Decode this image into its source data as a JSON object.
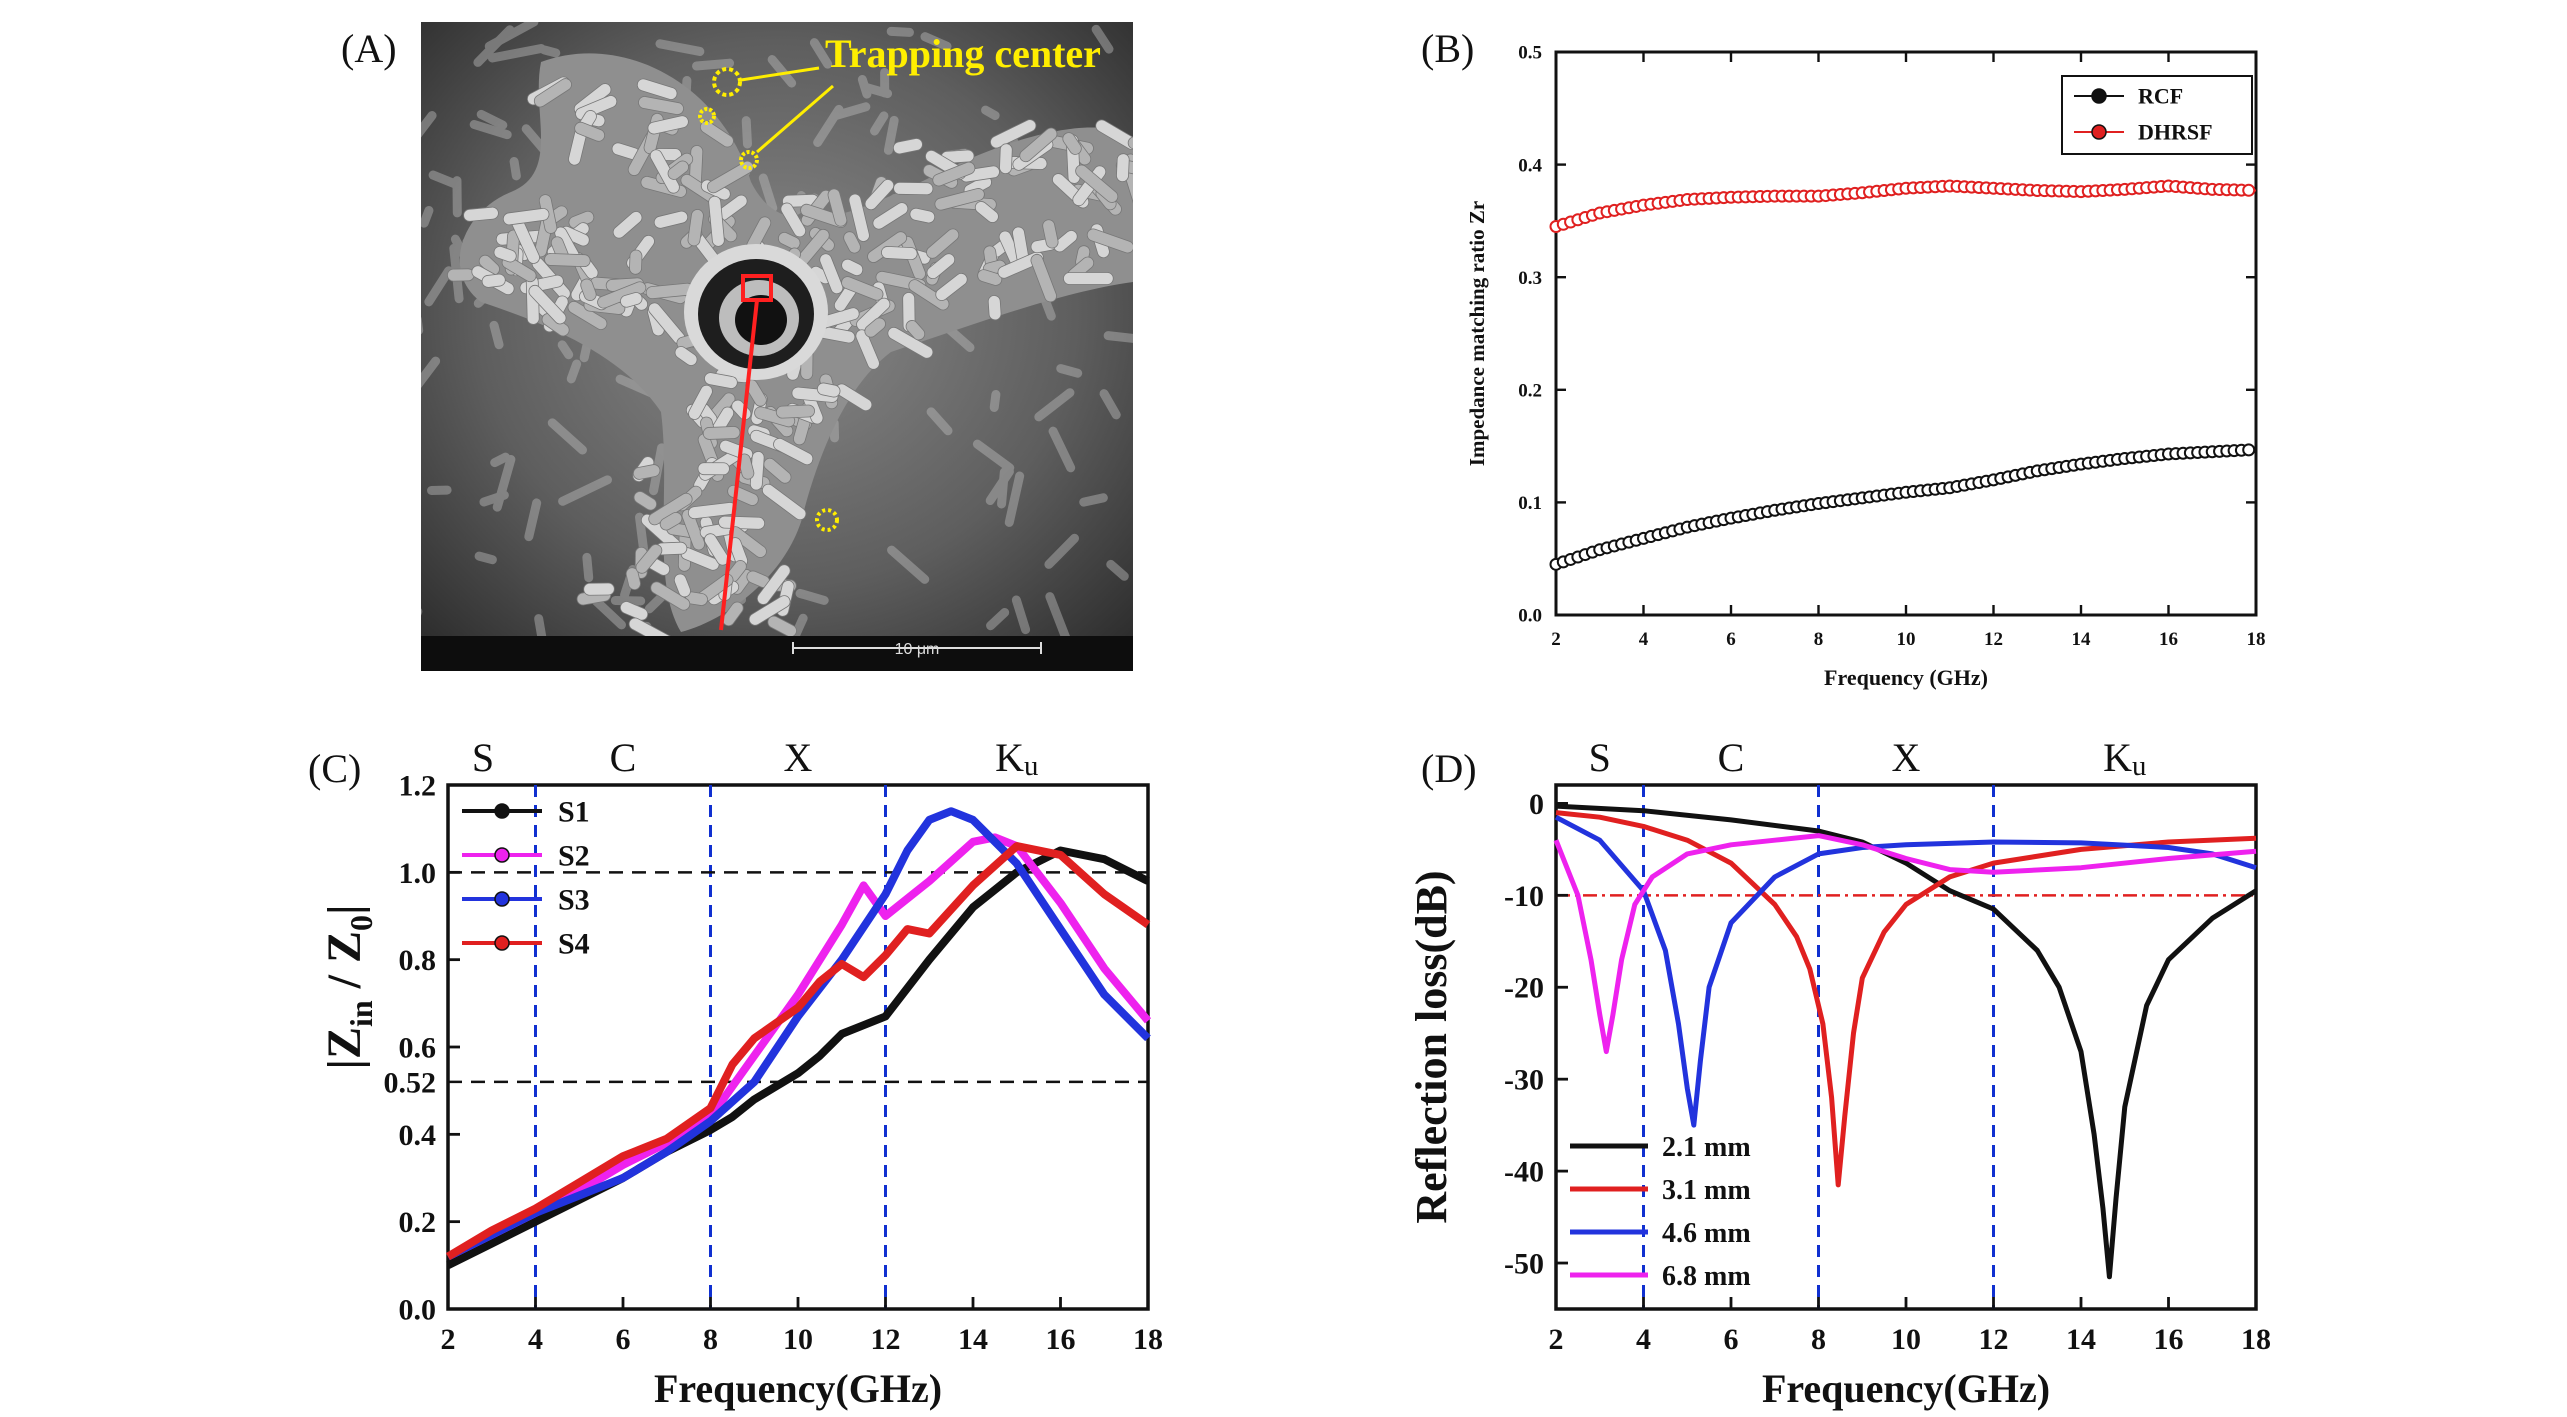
{
  "panels": {
    "a": {
      "label": "(A)",
      "annotation": "Trapping center",
      "scale_bar_label": "10 μm"
    },
    "b": {
      "label": "(B)"
    },
    "c": {
      "label": "(C)"
    },
    "d": {
      "label": "(D)"
    }
  },
  "chart_data": [
    {
      "id": "B",
      "type": "line",
      "title": "",
      "xlabel": "Frequency (GHz)",
      "ylabel": "Impedance matching ratio Zr",
      "xlim": [
        2,
        18
      ],
      "ylim": [
        0.0,
        0.5
      ],
      "xticks": [
        2,
        4,
        6,
        8,
        10,
        12,
        14,
        16,
        18
      ],
      "yticks": [
        0.0,
        0.1,
        0.2,
        0.3,
        0.4,
        0.5
      ],
      "legend_position": "top-right",
      "series": [
        {
          "name": "RCF",
          "color": "#111111",
          "x": [
            2,
            3,
            4,
            5,
            6,
            7,
            8,
            9,
            10,
            11,
            12,
            13,
            14,
            15,
            16,
            17,
            18
          ],
          "y": [
            0.045,
            0.058,
            0.068,
            0.078,
            0.086,
            0.093,
            0.099,
            0.104,
            0.109,
            0.113,
            0.12,
            0.128,
            0.134,
            0.139,
            0.143,
            0.145,
            0.147
          ]
        },
        {
          "name": "DHRSF",
          "color": "#e02020",
          "x": [
            2,
            3,
            4,
            5,
            6,
            7,
            8,
            9,
            10,
            11,
            12,
            13,
            14,
            15,
            16,
            17,
            18
          ],
          "y": [
            0.345,
            0.357,
            0.364,
            0.369,
            0.371,
            0.372,
            0.372,
            0.375,
            0.379,
            0.381,
            0.379,
            0.377,
            0.376,
            0.378,
            0.381,
            0.378,
            0.377
          ]
        }
      ]
    },
    {
      "id": "C",
      "type": "line",
      "title": "",
      "xlabel": "Frequency(GHz)",
      "ylabel_main": "|Z",
      "ylabel_sub1": "in",
      "ylabel_mid": " / Z",
      "ylabel_sub2": "0",
      "ylabel_end": "|",
      "xlim": [
        2,
        18
      ],
      "ylim": [
        0.0,
        1.2
      ],
      "xticks": [
        2,
        4,
        6,
        8,
        10,
        12,
        14,
        16,
        18
      ],
      "yticks": [
        0.0,
        0.2,
        0.4,
        0.6,
        0.8,
        1.0,
        1.2
      ],
      "extra_ytick": 0.52,
      "hlines": [
        1.0,
        0.52
      ],
      "vlines": [
        4,
        8,
        12
      ],
      "bands": [
        {
          "label": "S",
          "x": 2.8
        },
        {
          "label": "C",
          "x": 6.0
        },
        {
          "label": "X",
          "x": 10.0
        },
        {
          "label": "Ku",
          "x": 15.0
        }
      ],
      "legend_position": "top-left",
      "series": [
        {
          "name": "S1",
          "color": "#111111",
          "x": [
            2,
            3,
            4,
            5,
            6,
            7,
            8,
            8.5,
            9,
            10,
            10.5,
            11,
            11.5,
            12,
            13,
            14,
            15,
            16,
            17,
            18
          ],
          "y": [
            0.1,
            0.15,
            0.2,
            0.25,
            0.3,
            0.36,
            0.41,
            0.44,
            0.48,
            0.54,
            0.58,
            0.63,
            0.65,
            0.67,
            0.8,
            0.92,
            1.0,
            1.05,
            1.03,
            0.98
          ]
        },
        {
          "name": "S2",
          "color": "#ee22ee",
          "x": [
            2,
            3,
            4,
            5,
            6,
            7,
            8,
            9,
            10,
            11,
            11.5,
            12,
            13,
            14,
            14.5,
            15,
            16,
            17,
            18
          ],
          "y": [
            0.12,
            0.17,
            0.22,
            0.27,
            0.33,
            0.38,
            0.44,
            0.58,
            0.72,
            0.88,
            0.97,
            0.9,
            0.98,
            1.07,
            1.08,
            1.06,
            0.93,
            0.78,
            0.66
          ]
        },
        {
          "name": "S3",
          "color": "#2233dd",
          "x": [
            2,
            3,
            4,
            5,
            6,
            7,
            8,
            9,
            10,
            11,
            12,
            12.5,
            13,
            13.5,
            14,
            15,
            16,
            17,
            18
          ],
          "y": [
            0.12,
            0.17,
            0.22,
            0.26,
            0.3,
            0.36,
            0.43,
            0.52,
            0.67,
            0.8,
            0.95,
            1.05,
            1.12,
            1.14,
            1.12,
            1.02,
            0.87,
            0.72,
            0.62
          ]
        },
        {
          "name": "S4",
          "color": "#e02020",
          "x": [
            2,
            3,
            4,
            5,
            6,
            7,
            8,
            8.5,
            9,
            10,
            10.5,
            11,
            11.5,
            12,
            12.5,
            13,
            14,
            15,
            16,
            17,
            18
          ],
          "y": [
            0.12,
            0.18,
            0.23,
            0.29,
            0.35,
            0.39,
            0.46,
            0.56,
            0.62,
            0.69,
            0.75,
            0.79,
            0.76,
            0.81,
            0.87,
            0.86,
            0.97,
            1.06,
            1.04,
            0.95,
            0.88
          ]
        }
      ]
    },
    {
      "id": "D",
      "type": "line",
      "title": "",
      "xlabel": "Frequency(GHz)",
      "ylabel": "Reflection loss(dB)",
      "xlim": [
        2,
        18
      ],
      "ylim": [
        -55,
        2
      ],
      "xticks": [
        2,
        4,
        6,
        8,
        10,
        12,
        14,
        16,
        18
      ],
      "yticks": [
        0,
        -10,
        -20,
        -30,
        -40,
        -50
      ],
      "hlines": [
        -10
      ],
      "vlines": [
        4,
        8,
        12
      ],
      "bands": [
        {
          "label": "S",
          "x": 3.0
        },
        {
          "label": "C",
          "x": 6.0
        },
        {
          "label": "X",
          "x": 10.0
        },
        {
          "label": "Ku",
          "x": 15.0
        }
      ],
      "legend_position": "bottom-left",
      "series": [
        {
          "name": "2.1 mm",
          "color": "#111111",
          "x": [
            2,
            4,
            6,
            8,
            9,
            10,
            11,
            12,
            13,
            13.5,
            14,
            14.3,
            14.5,
            14.65,
            14.8,
            15,
            15.5,
            16,
            17,
            18
          ],
          "y": [
            -0.3,
            -0.8,
            -1.8,
            -3.0,
            -4.2,
            -6.5,
            -9.5,
            -11.5,
            -16.0,
            -20.0,
            -27.0,
            -36.0,
            -44.0,
            -51.5,
            -43.0,
            -33.0,
            -22.0,
            -17.0,
            -12.5,
            -9.5
          ]
        },
        {
          "name": "3.1 mm",
          "color": "#e02020",
          "x": [
            2,
            3,
            4,
            5,
            6,
            7,
            7.5,
            7.8,
            8.1,
            8.3,
            8.45,
            8.6,
            8.8,
            9,
            9.5,
            10,
            11,
            12,
            14,
            16,
            18
          ],
          "y": [
            -1.0,
            -1.5,
            -2.5,
            -4.0,
            -6.5,
            -11.0,
            -14.5,
            -18.0,
            -24.0,
            -32.0,
            -41.5,
            -34.0,
            -25.0,
            -19.0,
            -14.0,
            -11.0,
            -8.0,
            -6.5,
            -5.0,
            -4.2,
            -3.8
          ]
        },
        {
          "name": "4.6 mm",
          "color": "#2233dd",
          "x": [
            2,
            3,
            4,
            4.5,
            4.8,
            5.0,
            5.15,
            5.3,
            5.5,
            6,
            7,
            8,
            9,
            10,
            12,
            14,
            16,
            17,
            18
          ],
          "y": [
            -1.5,
            -4.0,
            -9.5,
            -16.0,
            -24.0,
            -31.0,
            -35.0,
            -28.0,
            -20.0,
            -13.0,
            -8.0,
            -5.5,
            -4.8,
            -4.5,
            -4.2,
            -4.3,
            -4.8,
            -5.5,
            -7.0
          ]
        },
        {
          "name": "6.8 mm",
          "color": "#ee22ee",
          "x": [
            2,
            2.5,
            2.8,
            3.0,
            3.15,
            3.3,
            3.5,
            3.8,
            4.2,
            5,
            6,
            7,
            8,
            9,
            10,
            11,
            12,
            14,
            16,
            18
          ],
          "y": [
            -4.0,
            -10.0,
            -17.0,
            -23.0,
            -27.0,
            -23.0,
            -17.0,
            -11.0,
            -8.0,
            -5.5,
            -4.5,
            -4.0,
            -3.5,
            -4.5,
            -6.0,
            -7.2,
            -7.5,
            -7.0,
            -6.0,
            -5.2
          ]
        }
      ]
    }
  ]
}
